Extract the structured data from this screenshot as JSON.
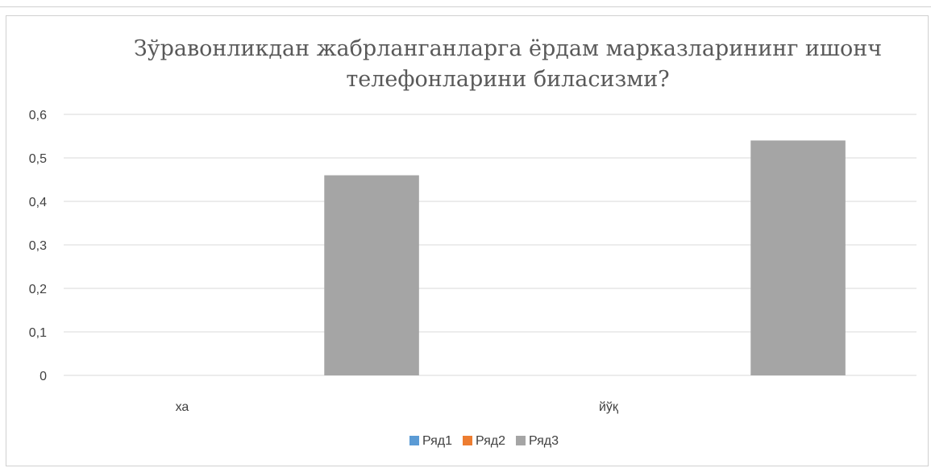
{
  "chart_data": {
    "type": "bar",
    "title_lines": [
      "Зўравонликдан жабрланганларга ёрдам марказларининг  ишонч",
      "телефонларини биласизми?"
    ],
    "categories": [
      "ха",
      "йўқ"
    ],
    "series": [
      {
        "name": "Ряд1",
        "color": "#5b9bd5",
        "values": [
          null,
          null
        ]
      },
      {
        "name": "Ряд2",
        "color": "#ed7d31",
        "values": [
          null,
          null
        ]
      },
      {
        "name": "Ряд3",
        "color": "#a5a5a5",
        "values": [
          0.46,
          0.54
        ]
      }
    ],
    "ylim": [
      0,
      0.6
    ],
    "yticks": [
      "0",
      "0,1",
      "0,2",
      "0,3",
      "0,4",
      "0,5",
      "0,6"
    ],
    "grid": true,
    "legend_position": "bottom"
  }
}
